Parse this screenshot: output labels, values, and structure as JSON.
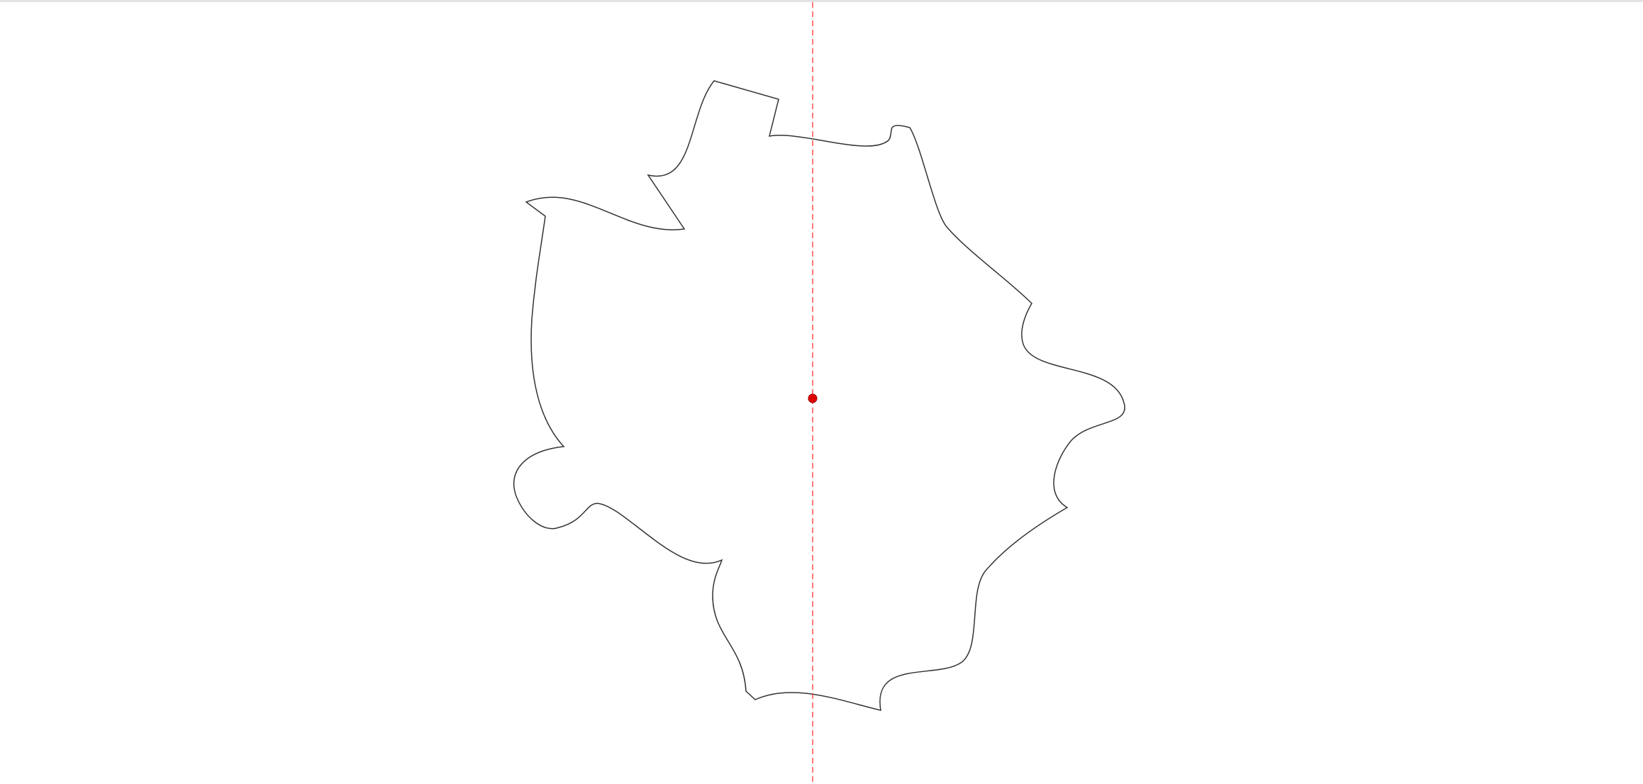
{
  "canvas": {
    "background": "#ffffff",
    "top_border_color": "#e3e3e3"
  },
  "shape": {
    "kind": "irregular closed outline",
    "stroke_color": "#333333",
    "fill": "none"
  },
  "symmetry_axis": {
    "kind": "vertical dashed line",
    "color": "#ff3333"
  },
  "center_point": {
    "kind": "filled circle marker",
    "color": "#e00000",
    "outline_color": "#990000"
  }
}
